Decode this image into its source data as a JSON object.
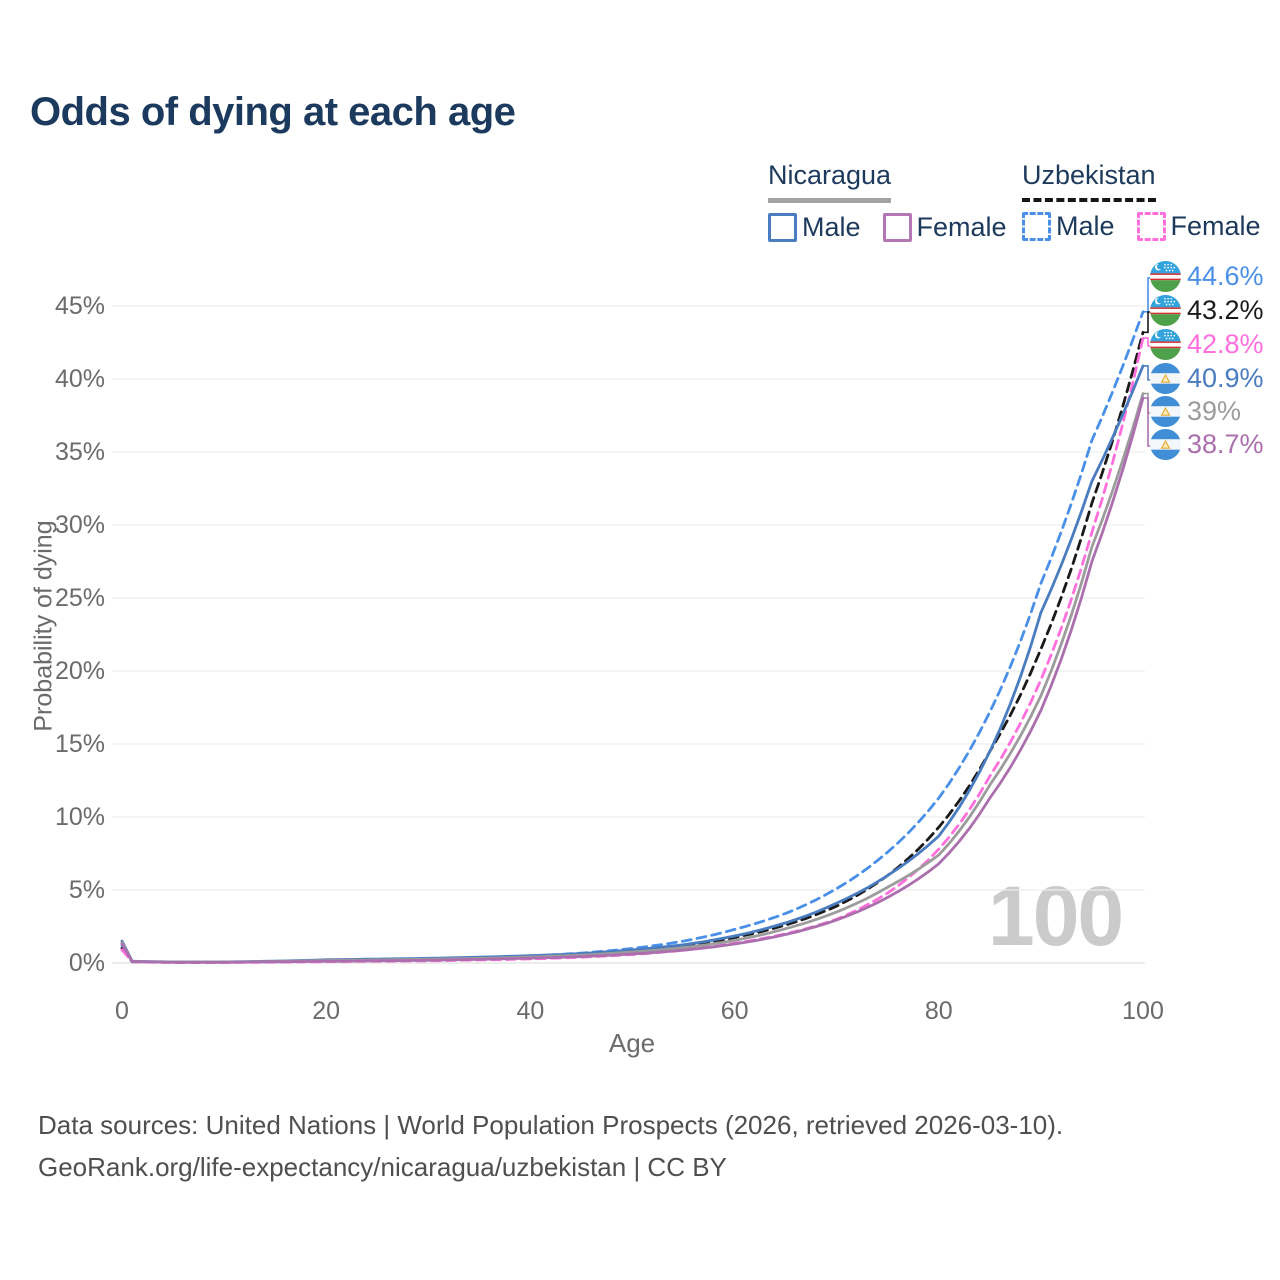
{
  "title": "Odds of dying at each age",
  "watermark": "100",
  "legend": {
    "groups": [
      {
        "country": "Nicaragua",
        "line_style": "solid",
        "underline_color": "#a3a3a3",
        "items": [
          {
            "label": "Male",
            "color": "#4a7cc0",
            "dashed": false
          },
          {
            "label": "Female",
            "color": "#b378b3",
            "dashed": false
          }
        ]
      },
      {
        "country": "Uzbekistan",
        "line_style": "dashed",
        "underline_color": "#161616",
        "items": [
          {
            "label": "Male",
            "color": "#4a90e8",
            "dashed": true
          },
          {
            "label": "Female",
            "color": "#ff70dc",
            "dashed": true
          }
        ]
      }
    ]
  },
  "chart_data": {
    "type": "line",
    "title": "Odds of dying at each age",
    "xlabel": "Age",
    "ylabel": "Probability of dying",
    "xlim": [
      0,
      100
    ],
    "ylim": [
      0,
      45
    ],
    "xticks": [
      0,
      20,
      40,
      60,
      80,
      100
    ],
    "ytick_percents": [
      0,
      5,
      10,
      15,
      20,
      25,
      30,
      35,
      40,
      45
    ],
    "grid": "horizontal",
    "legend_position": "top-right",
    "ages": [
      0,
      1,
      5,
      10,
      15,
      20,
      25,
      30,
      35,
      40,
      45,
      50,
      55,
      60,
      65,
      70,
      75,
      80,
      85,
      90,
      95,
      100
    ],
    "unit": "percent",
    "series": [
      {
        "name": "Uzbekistan Male",
        "country": "Uzbekistan",
        "sex": "Male",
        "color": "#4a90e8",
        "dashed": true,
        "end_label": "44.6%",
        "values": [
          1.2,
          0.1,
          0.06,
          0.06,
          0.1,
          0.18,
          0.22,
          0.28,
          0.36,
          0.48,
          0.68,
          1.0,
          1.5,
          2.3,
          3.4,
          5.1,
          7.6,
          11.3,
          17.2,
          26.0,
          35.8,
          44.6
        ]
      },
      {
        "name": "Uzbekistan Both sexes",
        "country": "Uzbekistan",
        "sex": "Both",
        "color": "#1a1a1a",
        "dashed": true,
        "end_label": "43.2%",
        "values": [
          1.0,
          0.09,
          0.05,
          0.05,
          0.08,
          0.13,
          0.17,
          0.22,
          0.28,
          0.38,
          0.53,
          0.78,
          1.15,
          1.75,
          2.6,
          3.9,
          6.0,
          9.3,
          14.5,
          21.5,
          31.5,
          43.2
        ]
      },
      {
        "name": "Uzbekistan Female",
        "country": "Uzbekistan",
        "sex": "Female",
        "color": "#ff6edd",
        "dashed": true,
        "end_label": "42.8%",
        "values": [
          0.9,
          0.08,
          0.04,
          0.04,
          0.06,
          0.09,
          0.12,
          0.15,
          0.21,
          0.28,
          0.4,
          0.58,
          0.88,
          1.35,
          2.0,
          3.0,
          4.8,
          7.8,
          12.8,
          19.4,
          29.5,
          42.8
        ]
      },
      {
        "name": "Nicaragua Male",
        "country": "Nicaragua",
        "sex": "Male",
        "color": "#4a7cc0",
        "dashed": false,
        "end_label": "40.9%",
        "values": [
          1.5,
          0.12,
          0.07,
          0.07,
          0.13,
          0.22,
          0.27,
          0.32,
          0.4,
          0.5,
          0.65,
          0.9,
          1.25,
          1.85,
          2.75,
          4.1,
          6.0,
          8.7,
          14.5,
          24.0,
          33.0,
          40.9
        ]
      },
      {
        "name": "Nicaragua Both sexes",
        "country": "Nicaragua",
        "sex": "Both",
        "color": "#9c9c9c",
        "dashed": false,
        "end_label": "39%",
        "values": [
          1.4,
          0.11,
          0.06,
          0.06,
          0.11,
          0.17,
          0.21,
          0.26,
          0.32,
          0.41,
          0.54,
          0.75,
          1.05,
          1.55,
          2.35,
          3.5,
          5.2,
          7.4,
          12.2,
          18.3,
          28.5,
          39.0
        ]
      },
      {
        "name": "Nicaragua Female",
        "country": "Nicaragua",
        "sex": "Female",
        "color": "#ab6fad",
        "dashed": false,
        "end_label": "38.7%",
        "values": [
          1.3,
          0.1,
          0.05,
          0.05,
          0.08,
          0.12,
          0.15,
          0.19,
          0.25,
          0.33,
          0.44,
          0.62,
          0.88,
          1.3,
          1.95,
          2.95,
          4.5,
          6.8,
          11.3,
          17.3,
          27.5,
          38.7
        ]
      }
    ]
  },
  "end_labels": [
    {
      "text": "44.6%",
      "color": "#4a90e8",
      "flag": "uzbekistan"
    },
    {
      "text": "43.2%",
      "color": "#1a1a1a",
      "flag": "uzbekistan"
    },
    {
      "text": "42.8%",
      "color": "#ff6edd",
      "flag": "uzbekistan"
    },
    {
      "text": "40.9%",
      "color": "#4a7cc0",
      "flag": "nicaragua"
    },
    {
      "text": "39%",
      "color": "#9c9c9c",
      "flag": "nicaragua"
    },
    {
      "text": "38.7%",
      "color": "#ab6fad",
      "flag": "nicaragua"
    }
  ],
  "footer": {
    "line1": "Data sources: United Nations | World Population Prospects (2026, retrieved 2026-03-10).",
    "line2": "GeoRank.org/life-expectancy/nicaragua/uzbekistan | CC BY"
  }
}
